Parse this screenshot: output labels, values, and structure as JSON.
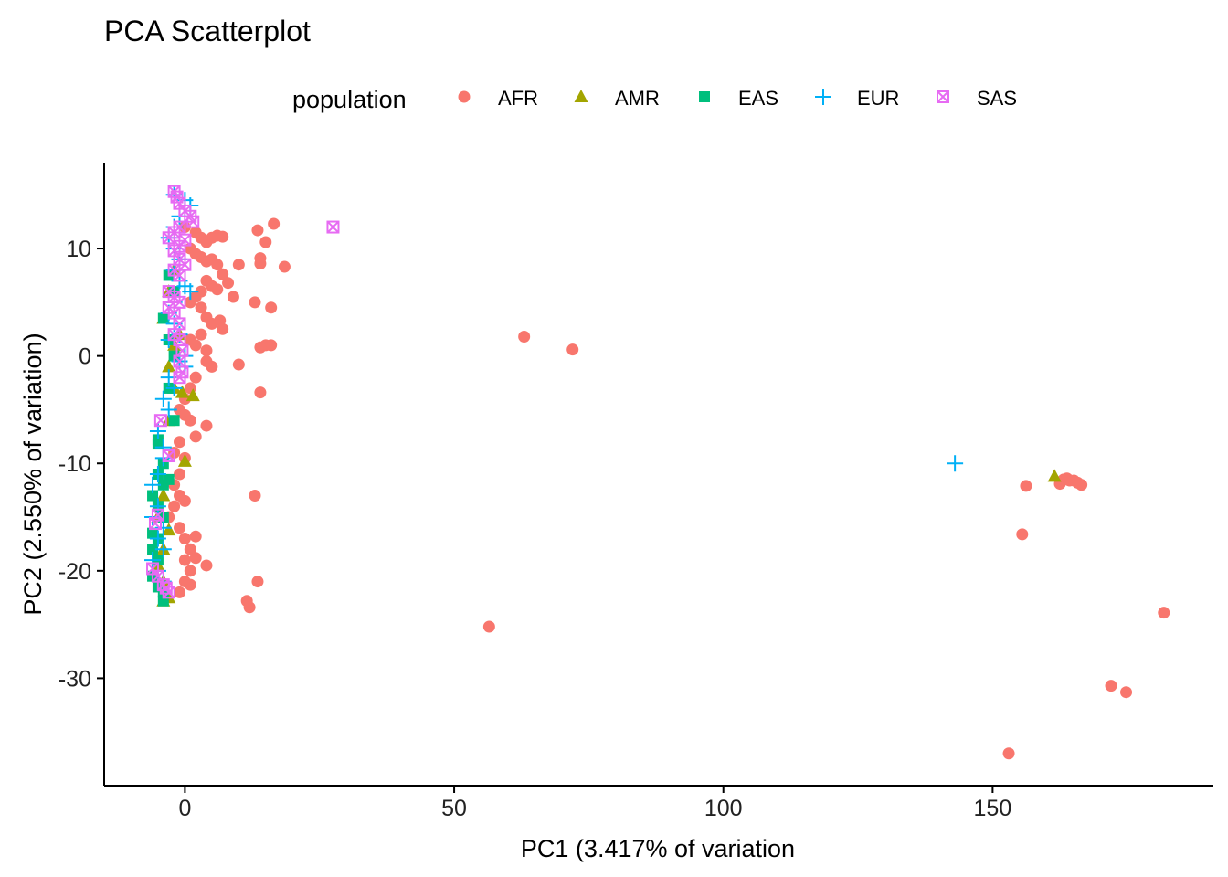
{
  "chart_data": {
    "type": "scatter",
    "title": "PCA Scatterplot",
    "xlabel": "PC1 (3.417% of variation",
    "ylabel": "PC2 (2.550% of variation)",
    "xlim": [
      -15,
      191
    ],
    "ylim": [
      -40,
      18
    ],
    "xticks": [
      0,
      50,
      100,
      150
    ],
    "yticks": [
      10,
      0,
      -10,
      -20,
      -30
    ],
    "xtick_labels": [
      "0",
      "50",
      "100",
      "150"
    ],
    "ytick_labels": [
      "10",
      "0",
      "-10",
      "-20",
      "-30"
    ],
    "grid": false,
    "legend": {
      "title": "population",
      "placement": "top",
      "entries": [
        {
          "label": "AFR",
          "shape": "circle",
          "color": "#F8766D"
        },
        {
          "label": "AMR",
          "shape": "triangle",
          "color": "#A3A500"
        },
        {
          "label": "EAS",
          "shape": "square",
          "color": "#00BF7D"
        },
        {
          "label": "EUR",
          "shape": "plus",
          "color": "#00B0F6"
        },
        {
          "label": "SAS",
          "shape": "boxcross",
          "color": "#E76BF3"
        }
      ]
    },
    "series": [
      {
        "name": "AFR",
        "shape": "circle",
        "color": "#F8766D",
        "points": [
          [
            0,
            12
          ],
          [
            2,
            11.5
          ],
          [
            3,
            11
          ],
          [
            4,
            10.6
          ],
          [
            5,
            11
          ],
          [
            6,
            11.2
          ],
          [
            7,
            11.1
          ],
          [
            1,
            10
          ],
          [
            2,
            9.5
          ],
          [
            3,
            9.2
          ],
          [
            4,
            8.8
          ],
          [
            5,
            9
          ],
          [
            6,
            8.5
          ],
          [
            7,
            7.6
          ],
          [
            8,
            6.8
          ],
          [
            6,
            6.2
          ],
          [
            5,
            6.5
          ],
          [
            4,
            7
          ],
          [
            3,
            6
          ],
          [
            2,
            5.5
          ],
          [
            1,
            5
          ],
          [
            3,
            4.5
          ],
          [
            4,
            3.6
          ],
          [
            5,
            3
          ],
          [
            3,
            2
          ],
          [
            2,
            1
          ],
          [
            1,
            1.5
          ],
          [
            4,
            0.5
          ],
          [
            4,
            -0.5
          ],
          [
            5,
            -1
          ],
          [
            2,
            -2
          ],
          [
            1,
            -3
          ],
          [
            0,
            -4
          ],
          [
            -1,
            -5
          ],
          [
            0,
            -5.5
          ],
          [
            1,
            -6
          ],
          [
            4,
            -6.5
          ],
          [
            2,
            -7.5
          ],
          [
            -1,
            -8
          ],
          [
            -2,
            -9
          ],
          [
            0,
            -9.5
          ],
          [
            -1,
            -11
          ],
          [
            -2,
            -12
          ],
          [
            -1,
            -13
          ],
          [
            0,
            -13.5
          ],
          [
            -2,
            -14
          ],
          [
            -3,
            -15
          ],
          [
            -1,
            -16
          ],
          [
            0,
            -17
          ],
          [
            2,
            -16.8
          ],
          [
            1,
            -18
          ],
          [
            0,
            -19
          ],
          [
            2,
            -18.8
          ],
          [
            1,
            -20
          ],
          [
            0,
            -21
          ],
          [
            1,
            -21.3
          ],
          [
            -1,
            -22
          ],
          [
            4,
            -19.5
          ],
          [
            13.5,
            11.7
          ],
          [
            16.5,
            12.3
          ],
          [
            15,
            10.6
          ],
          [
            14,
            9.1
          ],
          [
            14,
            8.6
          ],
          [
            18.5,
            8.3
          ],
          [
            10,
            8.5
          ],
          [
            9,
            5.5
          ],
          [
            13,
            5
          ],
          [
            16,
            4.5
          ],
          [
            6.5,
            3.3
          ],
          [
            7,
            2.5
          ],
          [
            15,
            1
          ],
          [
            16,
            1
          ],
          [
            14,
            0.8
          ],
          [
            10,
            -0.8
          ],
          [
            14,
            -3.4
          ],
          [
            13,
            -13
          ],
          [
            11.5,
            -22.8
          ],
          [
            12,
            -23.4
          ],
          [
            13.5,
            -21
          ],
          [
            56.5,
            -25.2
          ],
          [
            63,
            1.8
          ],
          [
            72,
            0.6
          ],
          [
            153,
            -37
          ],
          [
            155.5,
            -16.6
          ],
          [
            156.2,
            -12.1
          ],
          [
            162.5,
            -11.9
          ],
          [
            163.2,
            -11.5
          ],
          [
            163.8,
            -11.4
          ],
          [
            164.3,
            -11.6
          ],
          [
            165.1,
            -11.6
          ],
          [
            165.8,
            -11.8
          ],
          [
            166.5,
            -12
          ],
          [
            172,
            -30.7
          ],
          [
            174.8,
            -31.3
          ],
          [
            181.8,
            -23.9
          ]
        ]
      },
      {
        "name": "AMR",
        "shape": "triangle",
        "color": "#A3A500",
        "points": [
          [
            -2,
            8
          ],
          [
            -3,
            6
          ],
          [
            -4,
            3.5
          ],
          [
            -1,
            2
          ],
          [
            -2,
            1
          ],
          [
            -3,
            -1
          ],
          [
            -2,
            -3
          ],
          [
            -0.5,
            -3.4
          ],
          [
            1.5,
            -3.7
          ],
          [
            -3,
            -6
          ],
          [
            0,
            -9.8
          ],
          [
            -4,
            -13
          ],
          [
            -5,
            -15
          ],
          [
            -3,
            -16.2
          ],
          [
            -4,
            -18
          ],
          [
            -5,
            -19.5
          ],
          [
            -4,
            -21
          ],
          [
            -3,
            -22.5
          ],
          [
            -4,
            -22.8
          ],
          [
            161.5,
            -11.2
          ]
        ]
      },
      {
        "name": "EAS",
        "shape": "square",
        "color": "#00BF7D",
        "points": [
          [
            -3,
            7.5
          ],
          [
            -2,
            6
          ],
          [
            -4,
            3.5
          ],
          [
            -3,
            1.5
          ],
          [
            -2,
            0
          ],
          [
            -3,
            -3
          ],
          [
            -2,
            -6
          ],
          [
            -5,
            -7.8
          ],
          [
            -5,
            -8.2
          ],
          [
            -4,
            -10
          ],
          [
            -5,
            -11
          ],
          [
            -4,
            -12
          ],
          [
            -3,
            -11.5
          ],
          [
            -6,
            -13
          ],
          [
            -5,
            -14
          ],
          [
            -4,
            -15
          ],
          [
            -6,
            -16.5
          ],
          [
            -5,
            -17
          ],
          [
            -6,
            -18
          ],
          [
            -5,
            -19
          ],
          [
            -6,
            -20.5
          ],
          [
            -5,
            -21.5
          ],
          [
            -4,
            -22
          ],
          [
            -4,
            -22.8
          ]
        ]
      },
      {
        "name": "EUR",
        "shape": "plus",
        "color": "#00B0F6",
        "points": [
          [
            -2,
            15
          ],
          [
            0,
            14.5
          ],
          [
            1,
            14
          ],
          [
            -1,
            13
          ],
          [
            -2,
            12
          ],
          [
            -3,
            11
          ],
          [
            -2,
            10
          ],
          [
            -1,
            9
          ],
          [
            -2,
            8
          ],
          [
            -1,
            7
          ],
          [
            0,
            6.5
          ],
          [
            1,
            6
          ],
          [
            -2,
            5
          ],
          [
            -3,
            4
          ],
          [
            -2,
            3
          ],
          [
            -1,
            2
          ],
          [
            -3,
            1.5
          ],
          [
            0,
            0
          ],
          [
            -1,
            -0.5
          ],
          [
            0,
            -1
          ],
          [
            -3,
            -2
          ],
          [
            -2,
            -3
          ],
          [
            -4,
            -4
          ],
          [
            -3,
            -5
          ],
          [
            -5,
            -7
          ],
          [
            -4,
            -8.5
          ],
          [
            -4,
            -9.5
          ],
          [
            -5,
            -11
          ],
          [
            -6,
            -12
          ],
          [
            -5,
            -14
          ],
          [
            -6,
            -15
          ],
          [
            -4,
            -16
          ],
          [
            -5,
            -17
          ],
          [
            -4,
            -18
          ],
          [
            -6,
            -19
          ],
          [
            -5,
            -20
          ],
          [
            -4,
            -21
          ],
          [
            143,
            -10
          ]
        ]
      },
      {
        "name": "SAS",
        "shape": "boxcross",
        "color": "#E76BF3",
        "points": [
          [
            -2,
            15.3
          ],
          [
            -1.5,
            14.8
          ],
          [
            -1,
            14.2
          ],
          [
            0,
            13.5
          ],
          [
            1,
            13
          ],
          [
            1.5,
            12.5
          ],
          [
            -1,
            12
          ],
          [
            -2,
            11.5
          ],
          [
            -3,
            11
          ],
          [
            0,
            10.8
          ],
          [
            -1,
            10.2
          ],
          [
            -2,
            9.8
          ],
          [
            -1,
            9
          ],
          [
            0,
            8.5
          ],
          [
            -2,
            8
          ],
          [
            -1,
            7.5
          ],
          [
            -3,
            6
          ],
          [
            -2,
            5.5
          ],
          [
            -1,
            5
          ],
          [
            -3,
            4.5
          ],
          [
            -2,
            4
          ],
          [
            -1,
            3
          ],
          [
            -2,
            2
          ],
          [
            -1,
            1.5
          ],
          [
            -0.5,
            0.5
          ],
          [
            -1,
            -0.5
          ],
          [
            -0.5,
            -1.5
          ],
          [
            -1,
            -2
          ],
          [
            27.5,
            12
          ],
          [
            -4.5,
            -6
          ],
          [
            -3,
            -9.3
          ],
          [
            -5,
            -14.8
          ],
          [
            -5.5,
            -15.6
          ],
          [
            -6,
            -19.8
          ],
          [
            -5,
            -20.5
          ],
          [
            -4,
            -21.3
          ],
          [
            -3.5,
            -21.6
          ],
          [
            -3,
            -22
          ]
        ]
      }
    ]
  }
}
